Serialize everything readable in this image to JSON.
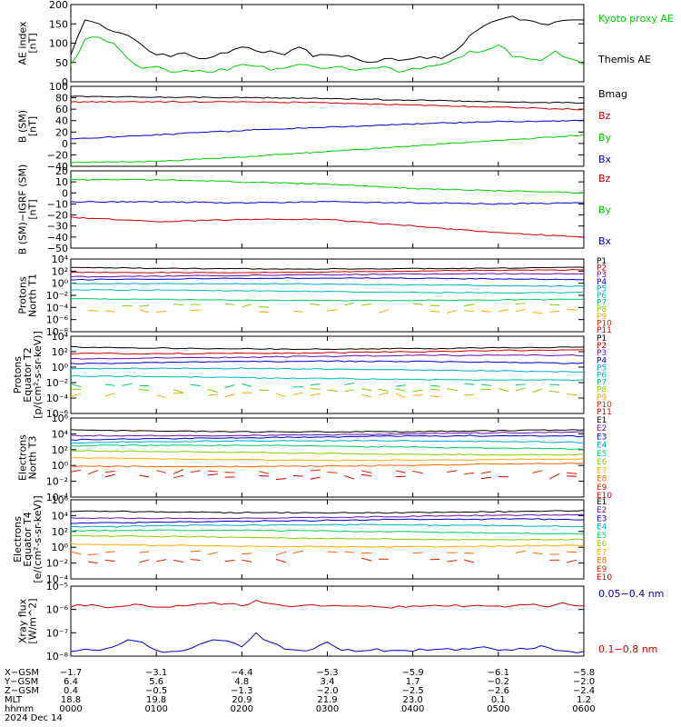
{
  "chart_data": [
    {
      "type": "line",
      "ylabel": [
        "AE index",
        "[nT]"
      ],
      "yticks": [
        "200",
        "150",
        "100",
        "50",
        "0"
      ],
      "ylim": [
        0,
        200
      ],
      "x": [
        0,
        10,
        20,
        30,
        40,
        50,
        60,
        70,
        80,
        90,
        100,
        110,
        120,
        130,
        140,
        150,
        160,
        170,
        180,
        190,
        200,
        210,
        220,
        230,
        240,
        250,
        260,
        270,
        280,
        290,
        300,
        310,
        320,
        330,
        340,
        350,
        360
      ],
      "series": [
        {
          "name": "Kyoto proxy AE",
          "color": "#00cc00",
          "values": [
            45,
            110,
            115,
            100,
            60,
            35,
            40,
            25,
            30,
            30,
            25,
            30,
            45,
            40,
            30,
            35,
            45,
            40,
            35,
            40,
            30,
            35,
            40,
            25,
            35,
            40,
            45,
            60,
            80,
            80,
            95,
            65,
            60,
            55,
            80,
            60,
            45
          ]
        },
        {
          "name": "Themis AE",
          "color": "#000000",
          "values": [
            70,
            160,
            150,
            130,
            120,
            95,
            70,
            65,
            75,
            60,
            65,
            75,
            90,
            80,
            80,
            70,
            90,
            65,
            70,
            65,
            60,
            50,
            60,
            55,
            60,
            60,
            60,
            80,
            120,
            145,
            160,
            170,
            160,
            150,
            155,
            160,
            160
          ]
        }
      ]
    },
    {
      "type": "line",
      "ylabel": [
        "B (SM)",
        "[nT]"
      ],
      "yticks": [
        "100",
        "80",
        "60",
        "40",
        "20",
        "0",
        "−20",
        "−40"
      ],
      "ylim": [
        -45,
        100
      ],
      "x": [
        0,
        60,
        120,
        180,
        240,
        300,
        360
      ],
      "series": [
        {
          "name": "Bx",
          "color": "#0000cc",
          "values": [
            5,
            12,
            20,
            26,
            32,
            36,
            38
          ]
        },
        {
          "name": "By",
          "color": "#00cc00",
          "values": [
            -38,
            -36,
            -28,
            -18,
            -8,
            2,
            12
          ]
        },
        {
          "name": "Bz",
          "color": "#cc0000",
          "values": [
            72,
            72,
            72,
            70,
            66,
            62,
            58
          ]
        },
        {
          "name": "Bmag",
          "color": "#000000",
          "values": [
            82,
            80,
            80,
            78,
            75,
            72,
            70
          ]
        }
      ]
    },
    {
      "type": "line",
      "ylabel": [
        "B (SM)−IGRF (SM)",
        "[nT]"
      ],
      "yticks": [
        "20",
        "10",
        "0",
        "−10",
        "−20",
        "−30",
        "−40",
        "−50"
      ],
      "ylim": [
        -50,
        20
      ],
      "x": [
        0,
        60,
        120,
        180,
        240,
        300,
        360
      ],
      "series": [
        {
          "name": "Bx",
          "color": "#0000cc",
          "values": [
            -8,
            -8,
            -9,
            -8,
            -9,
            -10,
            -9
          ]
        },
        {
          "name": "By",
          "color": "#00cc00",
          "values": [
            12,
            12,
            10,
            8,
            4,
            2,
            0
          ]
        },
        {
          "name": "Bz",
          "color": "#cc0000",
          "values": [
            -22,
            -26,
            -24,
            -24,
            -30,
            -36,
            -40
          ]
        }
      ]
    },
    {
      "type": "line",
      "ylabel": [
        "Protons",
        "North T1"
      ],
      "yticks": [
        "10⁴",
        "10²",
        "10⁰",
        "10⁻²",
        "10⁻⁴",
        "10⁻⁶",
        "10⁻⁸"
      ],
      "ylim": [
        -8,
        4
      ],
      "yscale": "log",
      "channels": [
        "P1",
        "P2",
        "P3",
        "P4",
        "P5",
        "P6",
        "P7",
        "P8",
        "P9",
        "P10",
        "P11"
      ],
      "channel_colors": [
        "#000000",
        "#cc0000",
        "#6a0dad",
        "#0000cc",
        "#00aacc",
        "#00bbbb",
        "#00cc66",
        "#88cc00",
        "#ffaa00",
        "#dd2200",
        "#cc0000"
      ],
      "levels": [
        2.6,
        2.0,
        1.3,
        0.6,
        -0.3,
        -1.3,
        -2.6,
        -3.6,
        -4.6,
        null,
        null
      ]
    },
    {
      "type": "line",
      "ylabel": [
        "Protons",
        "Equator T2",
        "[p/(cm²-s-sr-keV)]"
      ],
      "yticks": [
        "10⁴",
        "10²",
        "10⁰",
        "10⁻²",
        "10⁻⁴",
        "10⁻⁶"
      ],
      "ylim": [
        -6,
        4
      ],
      "yscale": "log",
      "channels": [
        "P1",
        "P2",
        "P3",
        "P4",
        "P5",
        "P6",
        "P7",
        "P8",
        "P9",
        "P10",
        "P11"
      ],
      "channel_colors": [
        "#000000",
        "#cc0000",
        "#6a0dad",
        "#0000cc",
        "#00aacc",
        "#00bbbb",
        "#00cc66",
        "#88cc00",
        "#ffaa00",
        "#dd2200",
        "#cc0000"
      ],
      "levels": [
        2.6,
        2.0,
        1.3,
        0.5,
        -0.4,
        -1.4,
        -2.3,
        -3.0,
        -3.6,
        null,
        null
      ]
    },
    {
      "type": "line",
      "ylabel": [
        "Electrons",
        "North T3"
      ],
      "yticks": [
        "10⁶",
        "10⁴",
        "10²",
        "10⁰",
        "10⁻²",
        "10⁻⁴"
      ],
      "ylim": [
        -4,
        6
      ],
      "yscale": "log",
      "channels": [
        "E1",
        "E2",
        "E3",
        "E4",
        "E5",
        "E6",
        "E7",
        "E8",
        "E9",
        "E10"
      ],
      "channel_colors": [
        "#000000",
        "#6a0dad",
        "#0000cc",
        "#00aacc",
        "#00cc66",
        "#88cc00",
        "#ffaa00",
        "#ff6600",
        "#dd2200",
        "#cc0000"
      ],
      "levels": [
        4.5,
        4.0,
        3.5,
        2.9,
        2.3,
        1.6,
        0.9,
        0.1,
        -0.8,
        -1.4
      ]
    },
    {
      "type": "line",
      "ylabel": [
        "Electrons",
        "Equator T4",
        "[e/(cm²-s-sr-keV)]"
      ],
      "yticks": [
        "10⁶",
        "10⁴",
        "10²",
        "10⁰",
        "10⁻²",
        "10⁻⁴"
      ],
      "ylim": [
        -4,
        6
      ],
      "yscale": "log",
      "channels": [
        "E1",
        "E2",
        "E3",
        "E4",
        "E5",
        "E6",
        "E7",
        "E8",
        "E9",
        "E10"
      ],
      "channel_colors": [
        "#000000",
        "#6a0dad",
        "#0000cc",
        "#00aacc",
        "#00cc66",
        "#88cc00",
        "#ffaa00",
        "#ff6600",
        "#dd2200",
        "#cc0000"
      ],
      "levels": [
        4.6,
        3.9,
        3.3,
        2.6,
        1.9,
        1.2,
        0.3,
        -0.7,
        -1.7,
        null
      ]
    },
    {
      "type": "line",
      "ylabel": [
        "Xray flux",
        "[W/m^2]"
      ],
      "yticks": [
        "10⁻⁵",
        "10⁻⁶",
        "10⁻⁷",
        "10⁻⁸"
      ],
      "ylim": [
        -8,
        -5
      ],
      "yscale": "log",
      "x": [
        0,
        10,
        20,
        30,
        40,
        50,
        60,
        70,
        80,
        90,
        100,
        110,
        120,
        130,
        140,
        150,
        160,
        170,
        180,
        190,
        200,
        210,
        220,
        230,
        240,
        250,
        260,
        270,
        280,
        290,
        300,
        310,
        320,
        330,
        340,
        350,
        360
      ],
      "series": [
        {
          "name": "0.1−0.8 nm",
          "color": "#cc0000",
          "values": [
            -5.9,
            -5.85,
            -5.85,
            -5.9,
            -5.85,
            -5.8,
            -5.9,
            -5.9,
            -5.85,
            -5.75,
            -5.7,
            -5.75,
            -5.85,
            -5.6,
            -5.75,
            -5.85,
            -5.85,
            -5.8,
            -5.85,
            -5.85,
            -5.85,
            -5.85,
            -5.9,
            -5.85,
            -5.85,
            -5.85,
            -5.85,
            -5.8,
            -5.85,
            -5.85,
            -5.85,
            -5.85,
            -5.8,
            -5.85,
            -5.8,
            -5.8,
            -5.85
          ]
        },
        {
          "name": "0.05−0.4 nm",
          "color": "#0000cc",
          "values": [
            -7.8,
            -7.7,
            -7.75,
            -7.6,
            -7.3,
            -7.4,
            -7.75,
            -7.8,
            -7.75,
            -7.5,
            -7.3,
            -7.35,
            -7.6,
            -7.0,
            -7.4,
            -7.7,
            -7.75,
            -7.7,
            -7.4,
            -7.75,
            -7.8,
            -7.75,
            -7.8,
            -7.75,
            -7.8,
            -7.75,
            -7.7,
            -7.75,
            -7.7,
            -7.6,
            -7.75,
            -7.75,
            -7.7,
            -7.55,
            -7.75,
            -7.8,
            -7.8
          ]
        }
      ]
    }
  ],
  "footer": {
    "row_labels": [
      "X−GSM",
      "Y−GSM",
      "Z−GSM",
      "MLT",
      "hhmm",
      "2024 Dec 14"
    ],
    "columns": [
      [
        "−1.7",
        "6.4",
        "0.4",
        "18.8",
        "0000"
      ],
      [
        "−3.1",
        "5.6",
        "−0.5",
        "19.8",
        "0100"
      ],
      [
        "−4.4",
        "4.8",
        "−1.3",
        "20.9",
        "0200"
      ],
      [
        "−5.3",
        "3.4",
        "−2.0",
        "21.9",
        "0300"
      ],
      [
        "−5.9",
        "1.7",
        "−2.5",
        "23.0",
        "0400"
      ],
      [
        "−6.1",
        "−0.2",
        "−2.6",
        "0.1",
        "0500"
      ],
      [
        "−5.8",
        "−2.0",
        "−2.4",
        "1.2",
        "0600"
      ]
    ]
  }
}
